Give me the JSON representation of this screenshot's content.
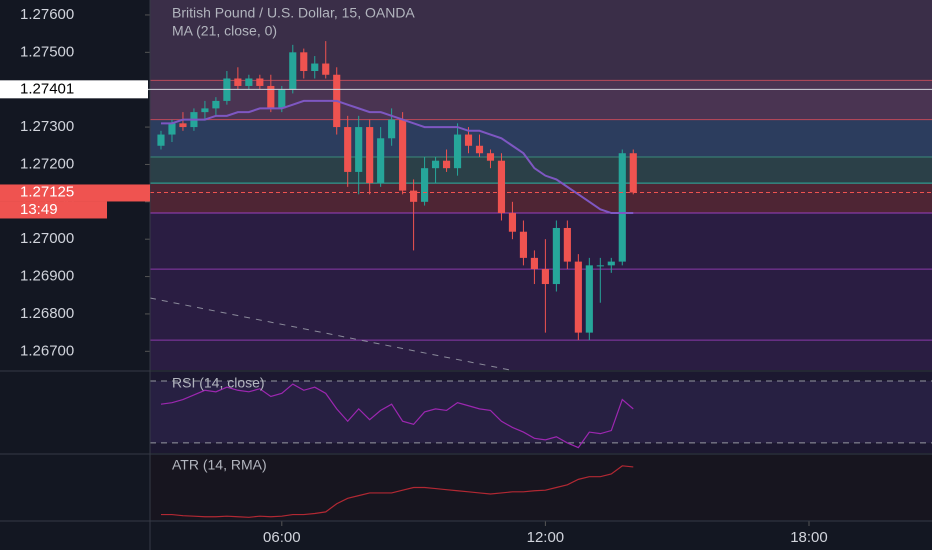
{
  "chart_data": [
    {
      "type": "candlestick",
      "title": "British Pound / U.S. Dollar, 15, OANDA",
      "x": [
        3.25,
        3.5,
        3.75,
        4,
        4.25,
        4.5,
        4.75,
        5,
        5.25,
        5.5,
        5.75,
        6,
        6.25,
        6.5,
        6.75,
        7,
        7.25,
        7.5,
        7.75,
        8,
        8.25,
        8.5,
        8.75,
        9,
        9.25,
        9.5,
        9.75,
        10,
        10.25,
        10.5,
        10.75,
        11,
        11.25,
        11.5,
        11.75,
        12,
        12.25,
        12.5,
        12.75,
        13,
        13.25,
        13.5,
        13.75,
        14
      ],
      "open": [
        1.2725,
        1.2728,
        1.2731,
        1.273,
        1.2734,
        1.2735,
        1.2737,
        1.2743,
        1.2741,
        1.2743,
        1.2741,
        1.2735,
        1.274,
        1.275,
        1.2745,
        1.2747,
        1.2744,
        1.273,
        1.2718,
        1.273,
        1.2715,
        1.2727,
        1.2732,
        1.2713,
        1.271,
        1.2719,
        1.2721,
        1.2719,
        1.2728,
        1.2725,
        1.2723,
        1.2721,
        1.2707,
        1.2702,
        1.2695,
        1.2692,
        1.2688,
        1.2703,
        1.2694,
        1.2675,
        1.2693,
        1.2693,
        1.2694,
        1.2723
      ],
      "high": [
        1.2729,
        1.2732,
        1.2734,
        1.2735,
        1.2737,
        1.2738,
        1.2745,
        1.2746,
        1.2744,
        1.2744,
        1.2744,
        1.2741,
        1.2752,
        1.2751,
        1.2749,
        1.2753,
        1.2746,
        1.2733,
        1.2733,
        1.2732,
        1.273,
        1.2735,
        1.2734,
        1.2716,
        1.2722,
        1.2722,
        1.2724,
        1.2731,
        1.273,
        1.2728,
        1.2724,
        1.2723,
        1.271,
        1.2705,
        1.2697,
        1.27,
        1.2705,
        1.2705,
        1.2696,
        1.2695,
        1.2695,
        1.2695,
        1.2724,
        1.2724
      ],
      "low": [
        1.2724,
        1.2726,
        1.2729,
        1.2729,
        1.2732,
        1.2733,
        1.2736,
        1.274,
        1.274,
        1.274,
        1.2734,
        1.2734,
        1.2739,
        1.2743,
        1.2743,
        1.2743,
        1.2728,
        1.2714,
        1.2712,
        1.2712,
        1.2714,
        1.2725,
        1.2712,
        1.2697,
        1.2709,
        1.2715,
        1.2718,
        1.2717,
        1.2723,
        1.2722,
        1.2719,
        1.2705,
        1.27,
        1.2693,
        1.2688,
        1.2675,
        1.2686,
        1.2692,
        1.2673,
        1.2673,
        1.2683,
        1.2691,
        1.2693,
        1.2712
      ],
      "close": [
        1.2728,
        1.2731,
        1.273,
        1.2734,
        1.2735,
        1.2737,
        1.2743,
        1.2741,
        1.2743,
        1.2741,
        1.2735,
        1.274,
        1.275,
        1.2745,
        1.2747,
        1.2744,
        1.273,
        1.2718,
        1.273,
        1.2715,
        1.2727,
        1.2732,
        1.2713,
        1.271,
        1.2719,
        1.2721,
        1.2719,
        1.2728,
        1.2725,
        1.2723,
        1.2721,
        1.2707,
        1.2702,
        1.2695,
        1.2692,
        1.2688,
        1.2703,
        1.2694,
        1.2675,
        1.2693,
        1.2693,
        1.2694,
        1.2723,
        1.27125
      ],
      "up_color": "#26a69a",
      "down_color": "#ef5350",
      "series": [
        {
          "name": "MA (21, close, 0)",
          "color": "#7e57c2",
          "values": [
            1.2731,
            1.2731,
            1.2732,
            1.2732,
            1.2732,
            1.2733,
            1.2733,
            1.2734,
            1.2734,
            1.2735,
            1.2735,
            1.2735,
            1.2736,
            1.2737,
            1.2737,
            1.2737,
            1.2737,
            1.2736,
            1.2735,
            1.2734,
            1.2734,
            1.2733,
            1.2732,
            1.2731,
            1.273,
            1.273,
            1.273,
            1.273,
            1.2729,
            1.2729,
            1.2728,
            1.2727,
            1.2725,
            1.2723,
            1.2719,
            1.2717,
            1.2716,
            1.2714,
            1.2712,
            1.271,
            1.2708,
            1.2707,
            1.2707,
            1.2707
          ]
        }
      ],
      "xlim": [
        3,
        20.8
      ],
      "ylim": [
        1.2665,
        1.2764
      ],
      "yticks": [
        {
          "value": 1.276,
          "label": "1.27600"
        },
        {
          "value": 1.275,
          "label": "1.27500"
        },
        {
          "value": 1.274,
          "label": "1.27400"
        },
        {
          "value": 1.273,
          "label": "1.27300"
        },
        {
          "value": 1.272,
          "label": "1.27200"
        },
        {
          "value": 1.271,
          "label": "1.27100"
        },
        {
          "value": 1.27,
          "label": "1.27000"
        },
        {
          "value": 1.269,
          "label": "1.26900"
        },
        {
          "value": 1.268,
          "label": "1.26800"
        },
        {
          "value": 1.267,
          "label": "1.26700"
        }
      ],
      "zones": [
        {
          "from": 1.2764,
          "to": 1.27425,
          "color": "#3a2e48"
        },
        {
          "from": 1.27425,
          "to": 1.2732,
          "color": "#4a3452"
        },
        {
          "from": 1.2732,
          "to": 1.2722,
          "color": "#2c3d5e"
        },
        {
          "from": 1.2722,
          "to": 1.2715,
          "color": "#2b4048"
        },
        {
          "from": 1.2715,
          "to": 1.2707,
          "color": "#4e2534"
        },
        {
          "from": 1.2707,
          "to": 1.2665,
          "color": "#2a1d42"
        }
      ],
      "levels": [
        {
          "value": 1.27425,
          "color": "#b84a5a"
        },
        {
          "value": 1.2732,
          "color": "#c0485a"
        },
        {
          "value": 1.2722,
          "color": "#3a8a7a"
        },
        {
          "value": 1.2715,
          "color": "#2ab5a5"
        },
        {
          "value": 1.2707,
          "color": "#9b3fbf"
        },
        {
          "value": 1.2692,
          "color": "#8a3aaa"
        },
        {
          "value": 1.2673,
          "color": "#8a3aaa"
        }
      ],
      "crosshair_price": 1.27401,
      "last_price": 1.27125,
      "countdown": "13:49"
    },
    {
      "type": "line",
      "title": "RSI (14, close)",
      "x": [
        3.25,
        3.5,
        3.75,
        4,
        4.25,
        4.5,
        4.75,
        5,
        5.25,
        5.5,
        5.75,
        6,
        6.25,
        6.5,
        6.75,
        7,
        7.25,
        7.5,
        7.75,
        8,
        8.25,
        8.5,
        8.75,
        9,
        9.25,
        9.5,
        9.75,
        10,
        10.25,
        10.5,
        10.75,
        11,
        11.25,
        11.5,
        11.75,
        12,
        12.25,
        12.5,
        12.75,
        13,
        13.25,
        13.5,
        13.75,
        14
      ],
      "values": [
        55,
        56,
        58,
        61,
        64,
        63,
        66,
        64,
        63,
        65,
        60,
        62,
        68,
        64,
        66,
        62,
        52,
        44,
        52,
        45,
        51,
        55,
        44,
        42,
        50,
        52,
        51,
        56,
        54,
        52,
        51,
        44,
        40,
        37,
        33,
        32,
        34,
        30,
        27,
        37,
        36,
        38,
        58,
        52
      ],
      "color": "#9c27b0",
      "xlim": [
        3,
        20.8
      ],
      "ylim": [
        23.5,
        75.8
      ],
      "levels": [
        70,
        30
      ]
    },
    {
      "type": "line",
      "title": "ATR (14, RMA)",
      "x": [
        3.25,
        3.5,
        3.75,
        4,
        4.25,
        4.5,
        4.75,
        5,
        5.25,
        5.5,
        5.75,
        6,
        6.25,
        6.5,
        6.75,
        7,
        7.25,
        7.5,
        7.75,
        8,
        8.25,
        8.5,
        8.75,
        9,
        9.25,
        9.5,
        9.75,
        10,
        10.25,
        10.5,
        10.75,
        11,
        11.25,
        11.5,
        11.75,
        12,
        12.25,
        12.5,
        12.75,
        13,
        13.25,
        13.5,
        13.75,
        14
      ],
      "values": [
        0.0005,
        0.0005,
        0.00048,
        0.00047,
        0.00046,
        0.00046,
        0.00047,
        0.00046,
        0.00045,
        0.00047,
        0.00046,
        0.00047,
        0.0005,
        0.0005,
        0.00052,
        0.00055,
        0.0007,
        0.0008,
        0.00085,
        0.0009,
        0.0009,
        0.0009,
        0.00095,
        0.001,
        0.001,
        0.00098,
        0.00096,
        0.00094,
        0.00092,
        0.0009,
        0.00088,
        0.0009,
        0.00092,
        0.00092,
        0.00094,
        0.00095,
        0.001,
        0.00105,
        0.00115,
        0.0012,
        0.0012,
        0.00125,
        0.0014,
        0.00138
      ],
      "color": "#b22833",
      "xlim": [
        3,
        20.8
      ],
      "ylim": [
        0.0004,
        0.0016
      ],
      "xticks": [
        {
          "value": 6,
          "label": "06:00"
        },
        {
          "value": 12,
          "label": "12:00"
        },
        {
          "value": 18,
          "label": "18:00"
        }
      ]
    }
  ]
}
